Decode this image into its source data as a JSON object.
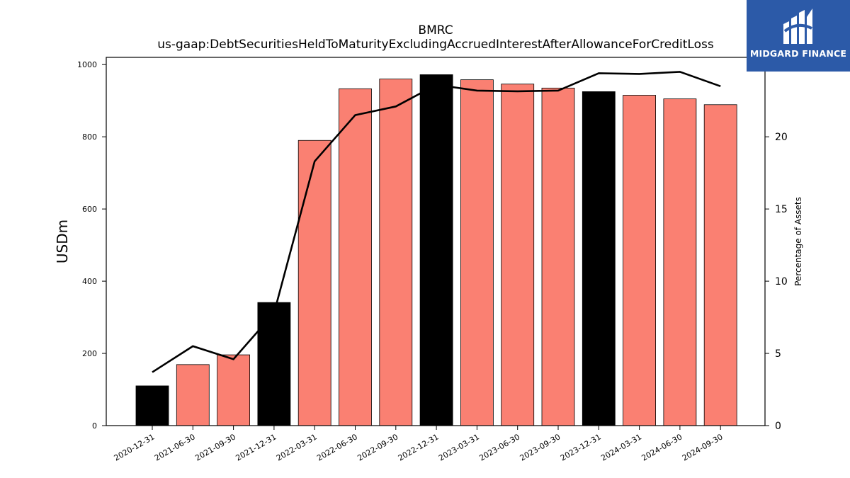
{
  "chart_data": {
    "type": "bar",
    "title": "BMRC",
    "subtitle": "us-gaap:DebtSecuritiesHeldToMaturityExcludingAccruedInterestAfterAllowanceForCreditLoss",
    "ylabel": "USDm",
    "y2label": "Percentage of Assets",
    "categories": [
      "2020-12-31",
      "2021-06-30",
      "2021-09-30",
      "2021-12-31",
      "2022-03-31",
      "2022-06-30",
      "2022-09-30",
      "2022-12-31",
      "2023-03-31",
      "2023-06-30",
      "2023-09-30",
      "2023-12-31",
      "2024-03-31",
      "2024-06-30",
      "2024-09-30"
    ],
    "series": [
      {
        "type": "bar",
        "values": [
          110,
          169,
          196,
          341,
          790,
          933,
          960,
          972,
          958,
          946,
          935,
          925,
          915,
          905,
          889
        ],
        "colors": [
          "#000000",
          "#fa8072",
          "#fa8072",
          "#000000",
          "#fa8072",
          "#fa8072",
          "#fa8072",
          "#000000",
          "#fa8072",
          "#fa8072",
          "#fa8072",
          "#000000",
          "#fa8072",
          "#fa8072",
          "#fa8072"
        ]
      },
      {
        "type": "line",
        "axis": "right",
        "color": "#000000",
        "values": [
          3.7,
          5.5,
          4.6,
          7.8,
          18.3,
          21.5,
          22.1,
          23.6,
          23.2,
          23.15,
          23.2,
          24.4,
          24.35,
          24.5,
          23.5
        ]
      }
    ],
    "ylim": [
      0,
      1020
    ],
    "y2lim": [
      0,
      25.5
    ],
    "yticks": [
      0,
      200,
      400,
      600,
      800,
      1000
    ],
    "y2ticks": [
      0,
      5,
      10,
      15,
      20
    ],
    "grid": false
  },
  "logo": {
    "name": "MIDGARD FINANCE",
    "color": "#2c5aa8",
    "icon": "midgard-logo-icon"
  }
}
